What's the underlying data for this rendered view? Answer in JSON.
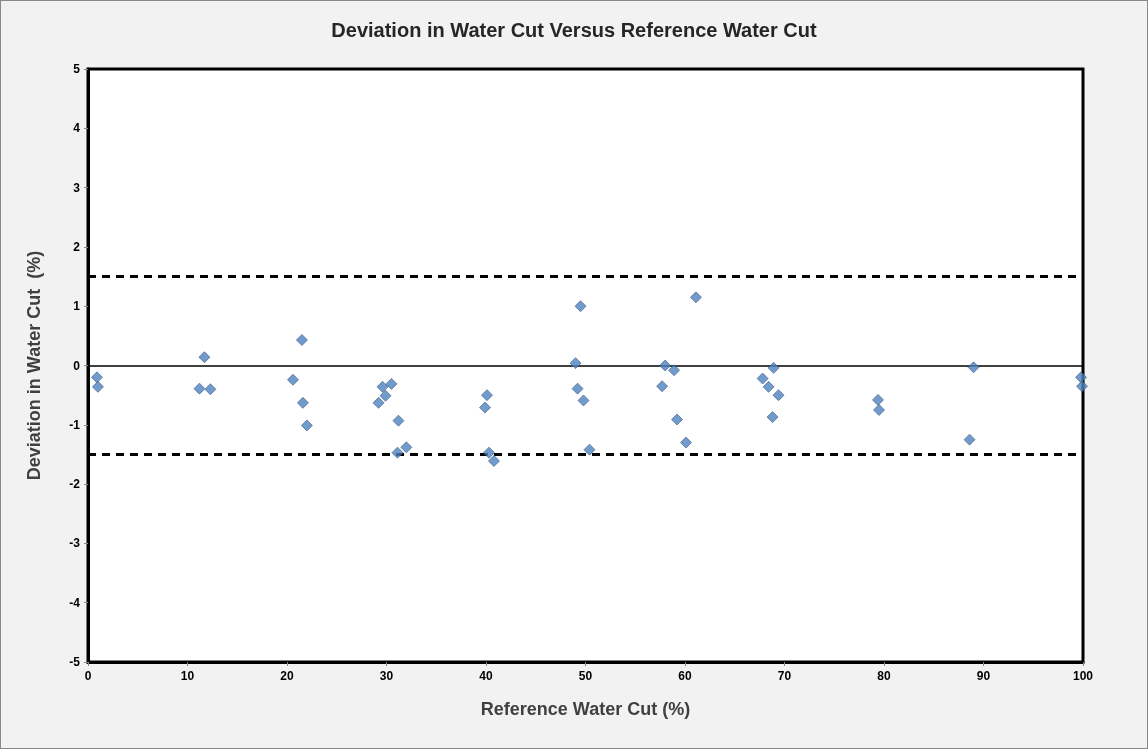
{
  "chart_data": {
    "type": "scatter",
    "title": "Deviation in Water Cut Versus Reference Water Cut",
    "xlabel": "Reference Water Cut (%)",
    "ylabel": "Deviation in Water Cut  (%)",
    "x": [
      0.9,
      1.0,
      11.7,
      11.2,
      12.3,
      20.6,
      21.5,
      21.6,
      22.0,
      29.2,
      29.6,
      29.9,
      30.5,
      31.2,
      31.1,
      32.0,
      40.1,
      39.9,
      40.3,
      40.8,
      49.5,
      49.0,
      49.2,
      49.8,
      50.4,
      61.1,
      58.0,
      58.9,
      57.7,
      59.2,
      60.1,
      67.8,
      68.4,
      68.9,
      69.4,
      68.8,
      79.4,
      79.5,
      89.0,
      88.6,
      99.8,
      99.9
    ],
    "series": [
      {
        "color": "#4f81bd",
        "values": [
          -0.2,
          -0.36,
          0.14,
          -0.39,
          -0.4,
          -0.24,
          0.43,
          -0.63,
          -1.01,
          -0.63,
          -0.36,
          -0.51,
          -0.31,
          -0.93,
          -1.47,
          -1.38,
          -0.5,
          -0.71,
          -1.47,
          -1.61,
          1.0,
          0.04,
          -0.39,
          -0.59,
          -1.42,
          1.15,
          0.0,
          -0.08,
          -0.35,
          -0.91,
          -1.3,
          -0.22,
          -0.36,
          -0.04,
          -0.5,
          -0.87,
          -0.58,
          -0.75,
          -0.03,
          -1.25,
          -0.2,
          -0.35
        ]
      }
    ],
    "marker": "diamond",
    "grid": false,
    "xlim": [
      0,
      100
    ],
    "xticks": [
      0,
      10,
      20,
      30,
      40,
      50,
      60,
      70,
      80,
      90,
      100
    ],
    "ylim": [
      -5,
      5
    ],
    "yticks": [
      -5,
      -4,
      -3,
      -2,
      -1,
      0,
      1,
      2,
      3,
      4,
      5
    ],
    "ref_lines": [
      {
        "axis": "y",
        "value": 1.5,
        "color": "#000000",
        "line_style": "dashed"
      },
      {
        "axis": "y",
        "value": 0,
        "color": "#000000",
        "line_style": "solid"
      },
      {
        "axis": "y",
        "value": -1.5,
        "color": "#000000",
        "line_style": "dashed"
      }
    ]
  }
}
